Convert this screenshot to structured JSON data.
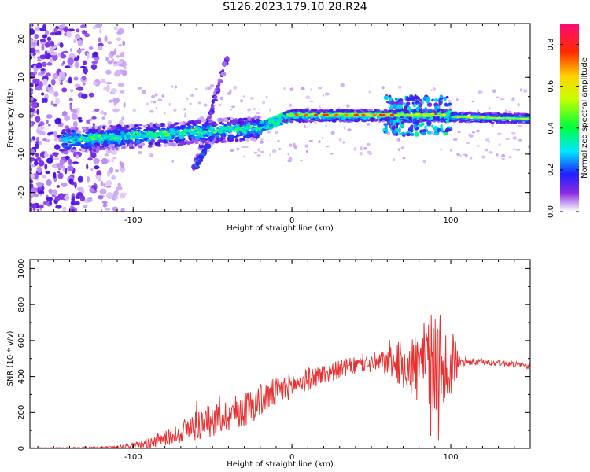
{
  "title": "S126.2023.179.10.28.R24",
  "chart_data": [
    {
      "type": "heatmap",
      "xlabel": "Height of straight line (km)",
      "ylabel": "Frequency (Hz)",
      "xlim": [
        -165,
        150
      ],
      "ylim": [
        -25,
        24
      ],
      "xticks": [
        -100,
        0,
        100
      ],
      "yticks": [
        -20,
        -10,
        0,
        10,
        20
      ],
      "colorbar": {
        "label": "Normalized spectral amplitude",
        "range": [
          0,
          0.9
        ],
        "ticks": [
          0.0,
          0.2,
          0.4,
          0.6,
          0.8
        ],
        "colormap": "rainbow (purple-blue-cyan-green-yellow-red-magenta)"
      },
      "features": [
        {
          "x": [
            -145,
            -20
          ],
          "y": [
            -6.5,
            -3
          ],
          "description": "main tone trace"
        },
        {
          "x": [
            -15,
            100
          ],
          "y": [
            0,
            0
          ],
          "description": "strong tone near 0 Hz"
        },
        {
          "x": [
            100,
            150
          ],
          "y": [
            -1,
            0
          ],
          "description": "steady tone"
        },
        {
          "x": [
            -60,
            -40
          ],
          "y": [
            -12,
            16
          ],
          "description": "diagonal branch"
        }
      ]
    },
    {
      "type": "line",
      "xlabel": "Height of straight line (km)",
      "ylabel": "SNR (10 * v/v)",
      "xlim": [
        -165,
        150
      ],
      "ylim": [
        0,
        1050
      ],
      "xticks": [
        -100,
        0,
        100
      ],
      "yticks": [
        0,
        200,
        400,
        600,
        800,
        1000
      ],
      "color": "#e83232",
      "envelope": [
        {
          "x": -165,
          "base": 2,
          "noise": 2
        },
        {
          "x": -140,
          "base": 3,
          "noise": 3
        },
        {
          "x": -115,
          "base": 5,
          "noise": 6
        },
        {
          "x": -100,
          "base": 15,
          "noise": 15
        },
        {
          "x": -90,
          "base": 30,
          "noise": 30
        },
        {
          "x": -75,
          "base": 70,
          "noise": 50
        },
        {
          "x": -60,
          "base": 130,
          "noise": 90
        },
        {
          "x": -45,
          "base": 170,
          "noise": 90
        },
        {
          "x": -30,
          "base": 220,
          "noise": 100
        },
        {
          "x": -15,
          "base": 290,
          "noise": 90
        },
        {
          "x": 0,
          "base": 350,
          "noise": 70
        },
        {
          "x": 15,
          "base": 400,
          "noise": 60
        },
        {
          "x": 30,
          "base": 440,
          "noise": 50
        },
        {
          "x": 45,
          "base": 470,
          "noise": 50
        },
        {
          "x": 60,
          "base": 480,
          "noise": 70
        },
        {
          "x": 70,
          "base": 470,
          "noise": 140
        },
        {
          "x": 80,
          "base": 450,
          "noise": 220
        },
        {
          "x": 90,
          "base": 470,
          "noise": 300
        },
        {
          "x": 100,
          "base": 470,
          "noise": 220
        },
        {
          "x": 106,
          "base": 480,
          "noise": 25
        },
        {
          "x": 120,
          "base": 480,
          "noise": 18
        },
        {
          "x": 140,
          "base": 470,
          "noise": 18
        },
        {
          "x": 150,
          "base": 455,
          "noise": 15
        }
      ]
    }
  ]
}
